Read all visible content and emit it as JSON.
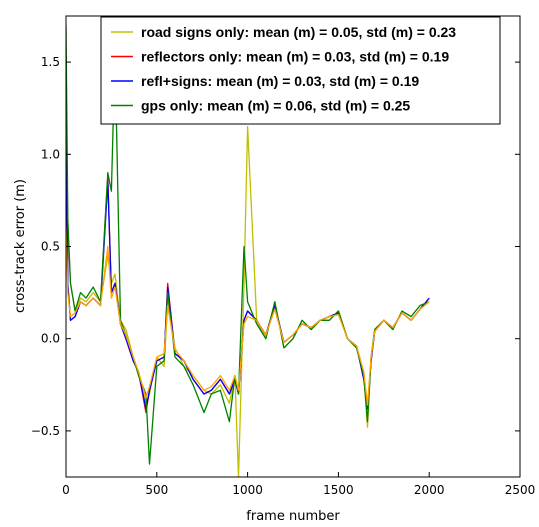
{
  "chart_data": {
    "type": "line",
    "xlabel": "frame number",
    "ylabel": "cross-track error (m)",
    "xlim": [
      0,
      2500
    ],
    "ylim": [
      -0.75,
      1.75
    ],
    "xticks": [
      0,
      500,
      1000,
      1500,
      2000,
      2500
    ],
    "yticks": [
      -0.5,
      0.0,
      0.5,
      1.0,
      1.5
    ],
    "ytick_labels": [
      "−0.5",
      "0.0",
      "0.5",
      "1.0",
      "1.5"
    ],
    "grid": false,
    "legend_position": "top-right",
    "series": [
      {
        "name": "road signs only: mean (m) = 0.05,  std (m) = 0.23",
        "color": "#bfbf00",
        "x": [
          0,
          10,
          25,
          50,
          80,
          110,
          150,
          190,
          230,
          250,
          270,
          300,
          330,
          370,
          400,
          440,
          460,
          500,
          540,
          560,
          600,
          650,
          700,
          760,
          800,
          850,
          900,
          930,
          950,
          980,
          1000,
          1050,
          1100,
          1150,
          1200,
          1250,
          1300,
          1350,
          1400,
          1450,
          1500,
          1550,
          1600,
          1640,
          1660,
          1680,
          1700,
          1750,
          1800,
          1850,
          1900,
          1950,
          2000
        ],
        "y": [
          1.5,
          0.6,
          0.3,
          0.15,
          0.22,
          0.2,
          0.25,
          0.2,
          0.45,
          0.3,
          0.35,
          0.1,
          0.05,
          -0.1,
          -0.2,
          -0.35,
          -0.3,
          -0.1,
          -0.15,
          0.2,
          -0.05,
          -0.15,
          -0.2,
          -0.28,
          -0.3,
          -0.25,
          -0.35,
          -0.2,
          -0.75,
          0.3,
          1.15,
          0.1,
          0.0,
          0.2,
          -0.05,
          0.0,
          0.1,
          0.05,
          0.1,
          0.1,
          0.15,
          0.0,
          -0.05,
          -0.2,
          -0.48,
          -0.1,
          0.05,
          0.1,
          0.05,
          0.15,
          0.12,
          0.18,
          0.2
        ]
      },
      {
        "name": "reflectors only: mean (m) = 0.03,  std (m) = 0.19",
        "color": "#ff0000",
        "x": [
          0,
          10,
          25,
          50,
          80,
          110,
          150,
          190,
          230,
          250,
          270,
          300,
          330,
          370,
          400,
          440,
          460,
          500,
          540,
          560,
          600,
          650,
          700,
          760,
          800,
          850,
          900,
          930,
          950,
          980,
          1000,
          1050,
          1100,
          1150,
          1200,
          1250,
          1300,
          1350,
          1400,
          1450,
          1500,
          1550,
          1600,
          1640,
          1660,
          1680,
          1700,
          1750,
          1800,
          1850,
          1900,
          1950,
          2000
        ],
        "y": [
          1.45,
          0.3,
          0.1,
          0.12,
          0.2,
          0.18,
          0.22,
          0.18,
          0.88,
          0.25,
          0.3,
          0.08,
          0.0,
          -0.12,
          -0.18,
          -0.4,
          -0.28,
          -0.12,
          -0.1,
          0.3,
          -0.08,
          -0.12,
          -0.22,
          -0.3,
          -0.28,
          -0.22,
          -0.3,
          -0.22,
          -0.3,
          0.1,
          0.15,
          0.1,
          0.02,
          0.18,
          -0.02,
          0.02,
          0.08,
          0.06,
          0.1,
          0.12,
          0.14,
          0.0,
          -0.04,
          -0.22,
          -0.38,
          -0.12,
          0.04,
          0.1,
          0.06,
          0.14,
          0.1,
          0.16,
          0.22
        ]
      },
      {
        "name": "refl+signs: mean (m) = 0.03,  std (m) = 0.19",
        "color": "#0000ff",
        "x": [
          0,
          10,
          25,
          50,
          80,
          110,
          150,
          190,
          230,
          250,
          270,
          300,
          330,
          370,
          400,
          440,
          460,
          500,
          540,
          560,
          600,
          650,
          700,
          760,
          800,
          850,
          900,
          930,
          950,
          980,
          1000,
          1050,
          1100,
          1150,
          1200,
          1250,
          1300,
          1350,
          1400,
          1450,
          1500,
          1550,
          1600,
          1640,
          1660,
          1680,
          1700,
          1750,
          1800,
          1850,
          1900,
          1950,
          2000
        ],
        "y": [
          1.4,
          0.3,
          0.1,
          0.12,
          0.2,
          0.18,
          0.22,
          0.18,
          0.85,
          0.25,
          0.3,
          0.08,
          0.0,
          -0.12,
          -0.18,
          -0.38,
          -0.28,
          -0.12,
          -0.1,
          0.28,
          -0.08,
          -0.12,
          -0.22,
          -0.3,
          -0.28,
          -0.22,
          -0.3,
          -0.22,
          -0.3,
          0.1,
          0.15,
          0.1,
          0.02,
          0.18,
          -0.02,
          0.02,
          0.08,
          0.06,
          0.1,
          0.12,
          0.14,
          0.0,
          -0.04,
          -0.22,
          -0.38,
          -0.12,
          0.04,
          0.1,
          0.06,
          0.14,
          0.1,
          0.16,
          0.22
        ]
      },
      {
        "name": "gps only: mean (m) = 0.06,  std (m) = 0.25",
        "color": "#008000",
        "x": [
          0,
          10,
          25,
          50,
          80,
          110,
          150,
          190,
          230,
          250,
          270,
          300,
          330,
          370,
          400,
          440,
          460,
          500,
          540,
          560,
          600,
          650,
          700,
          760,
          800,
          850,
          900,
          930,
          950,
          980,
          1000,
          1050,
          1100,
          1150,
          1200,
          1250,
          1300,
          1350,
          1400,
          1450,
          1500,
          1550,
          1600,
          1640,
          1660,
          1680,
          1700,
          1750,
          1800,
          1850,
          1900,
          1950,
          2000
        ],
        "y": [
          1.7,
          0.65,
          0.3,
          0.15,
          0.25,
          0.22,
          0.28,
          0.2,
          0.9,
          0.8,
          1.55,
          0.1,
          0.02,
          -0.1,
          -0.2,
          -0.3,
          -0.68,
          -0.15,
          -0.12,
          0.25,
          -0.1,
          -0.15,
          -0.25,
          -0.4,
          -0.3,
          -0.28,
          -0.45,
          -0.2,
          -0.3,
          0.5,
          0.2,
          0.08,
          0.0,
          0.2,
          -0.05,
          0.0,
          0.1,
          0.05,
          0.1,
          0.1,
          0.15,
          0.0,
          -0.05,
          -0.2,
          -0.45,
          -0.1,
          0.05,
          0.1,
          0.05,
          0.15,
          0.12,
          0.18,
          0.2
        ]
      },
      {
        "name": "",
        "color": "#ffa500",
        "x": [
          0,
          10,
          25,
          50,
          80,
          110,
          150,
          190,
          230,
          250,
          270,
          300,
          330,
          370,
          400,
          440,
          460,
          500,
          540,
          560,
          600,
          650,
          700,
          760,
          800,
          850,
          900,
          930,
          950,
          980,
          1000,
          1050,
          1100,
          1150,
          1200,
          1250,
          1300,
          1350,
          1400,
          1450,
          1500,
          1550,
          1600,
          1640,
          1660,
          1680,
          1700,
          1750,
          1800,
          1850,
          1900,
          1950,
          2000
        ],
        "y": [
          0.6,
          0.25,
          0.12,
          0.14,
          0.2,
          0.18,
          0.22,
          0.18,
          0.5,
          0.22,
          0.28,
          0.08,
          0.02,
          -0.1,
          -0.18,
          -0.32,
          -0.26,
          -0.1,
          -0.08,
          0.18,
          -0.06,
          -0.12,
          -0.2,
          -0.28,
          -0.26,
          -0.2,
          -0.28,
          -0.2,
          -0.28,
          0.08,
          0.12,
          0.1,
          0.02,
          0.16,
          -0.02,
          0.02,
          0.08,
          0.06,
          0.1,
          0.12,
          0.13,
          0.0,
          -0.04,
          -0.18,
          -0.36,
          -0.1,
          0.04,
          0.1,
          0.06,
          0.14,
          0.1,
          0.16,
          0.2
        ]
      }
    ]
  }
}
